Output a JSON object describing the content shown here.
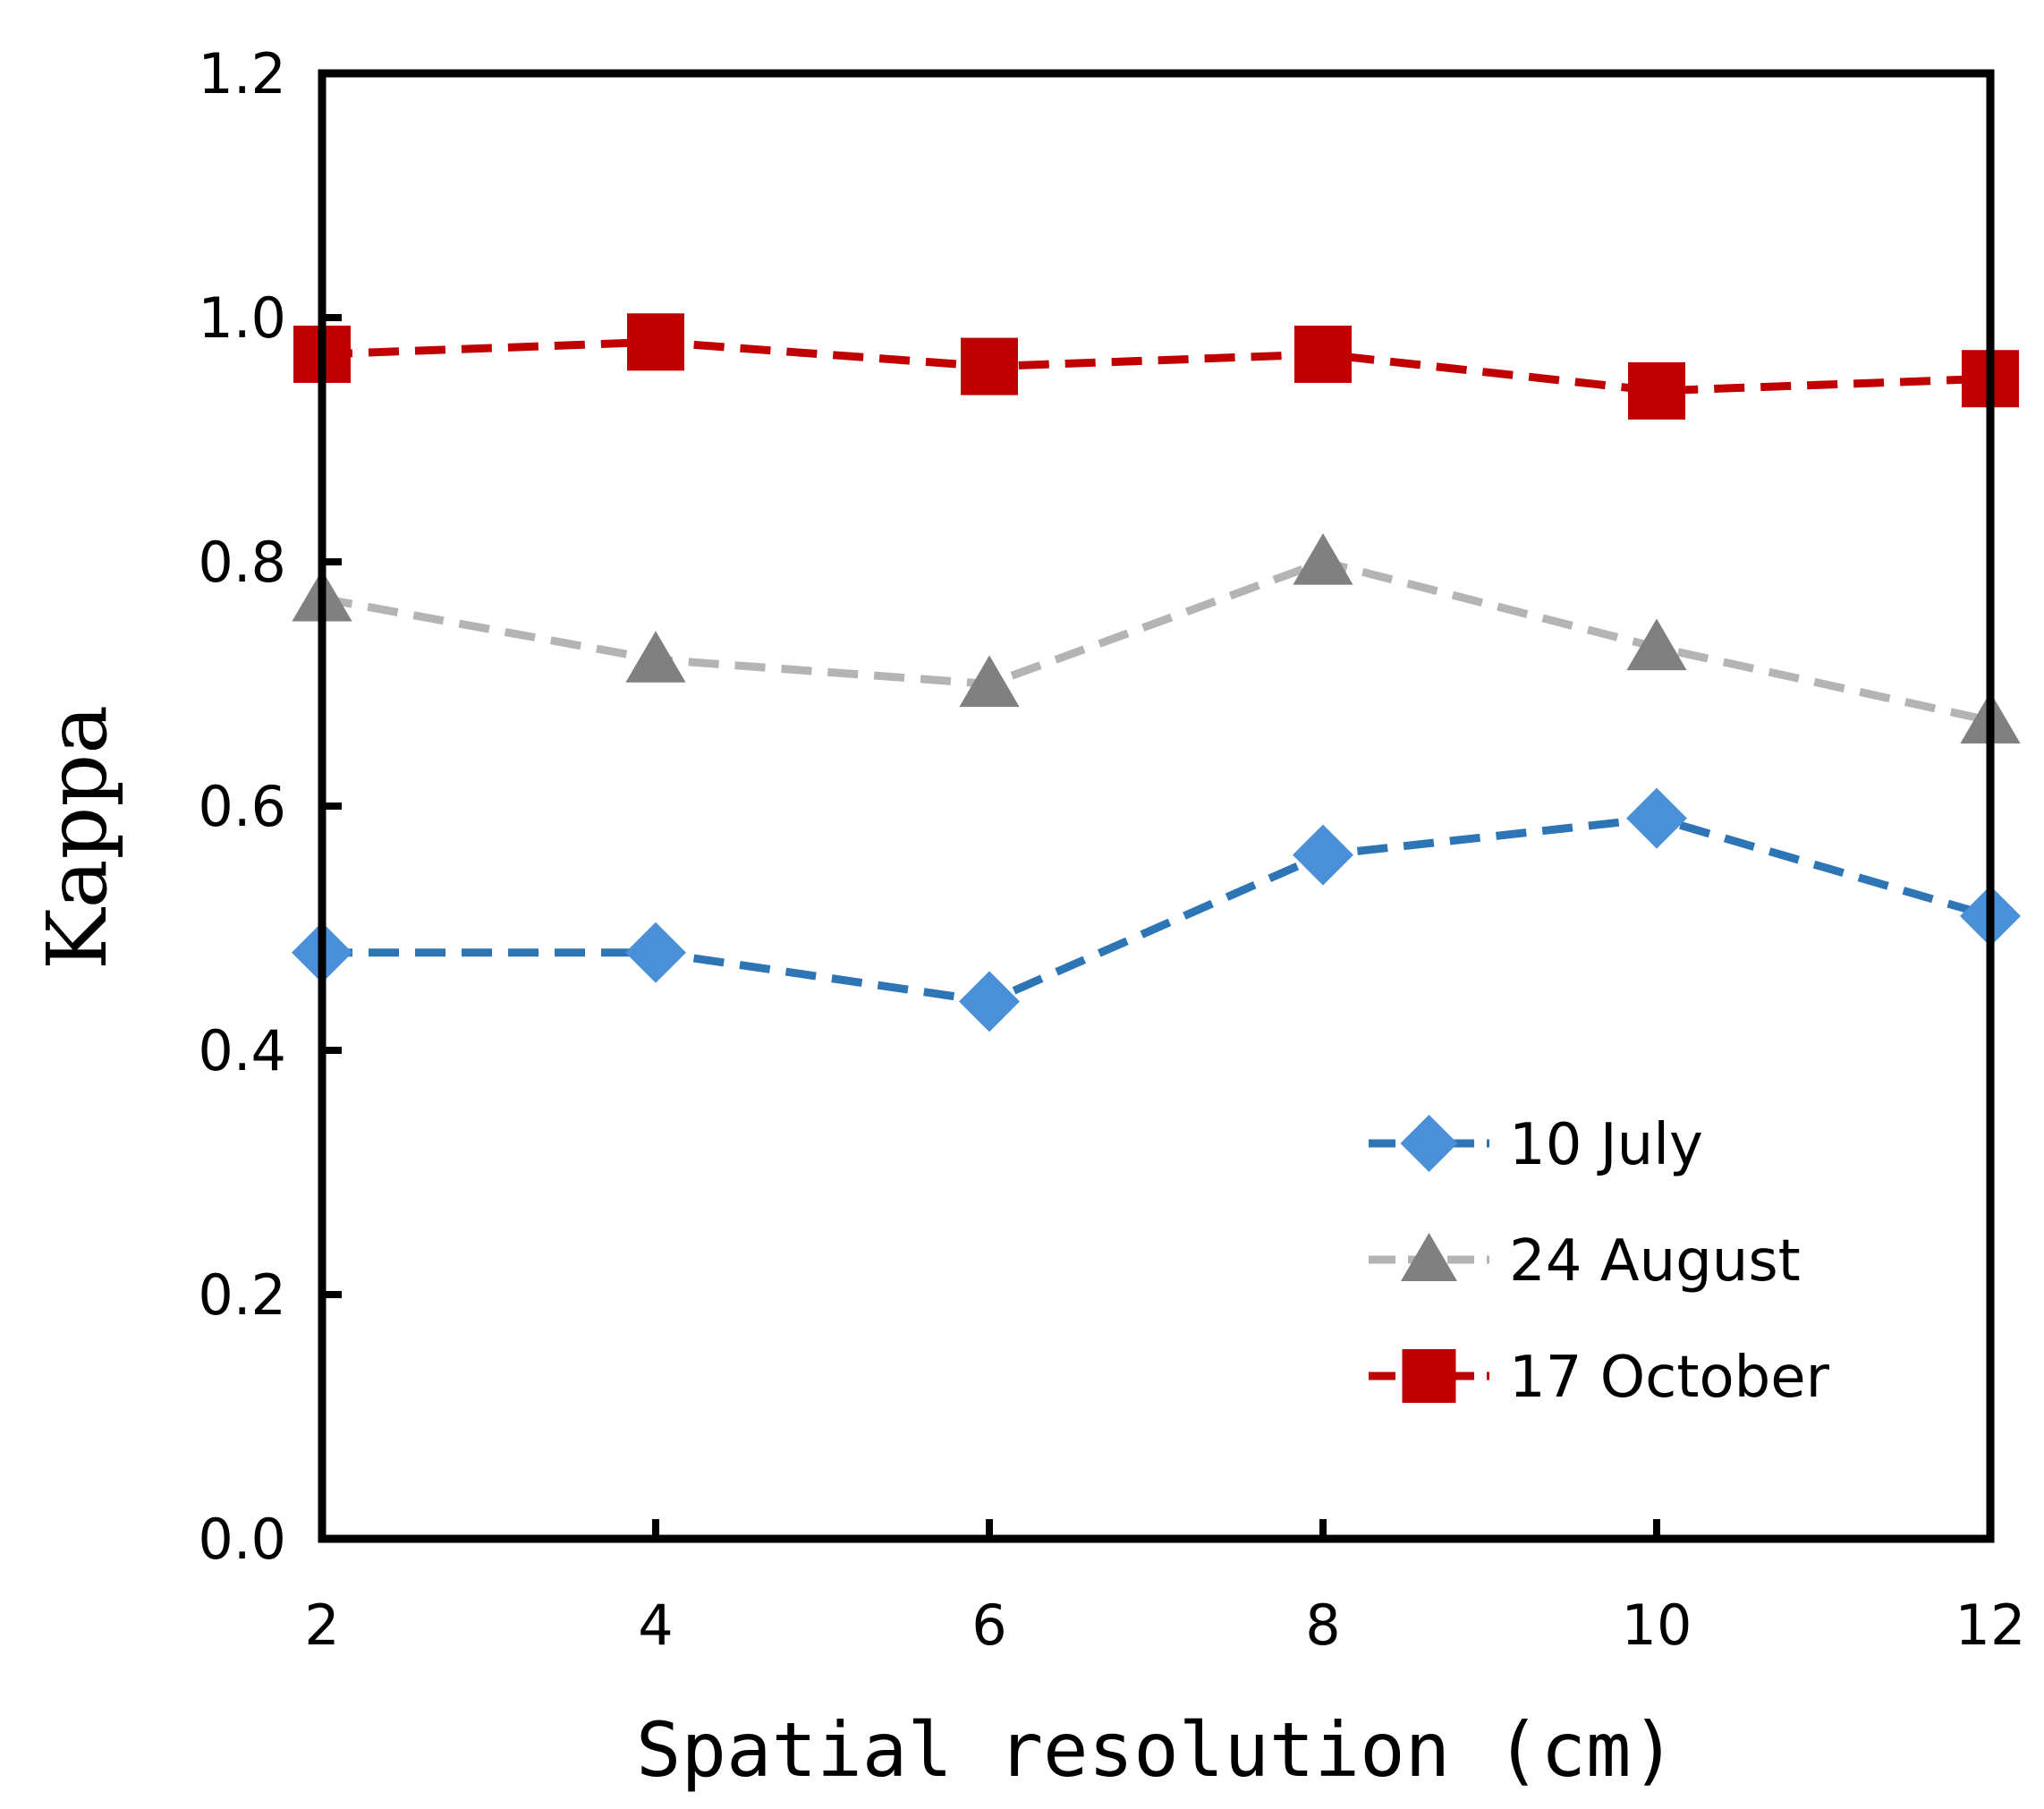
{
  "chart_data": {
    "type": "line",
    "title": "",
    "xlabel": "Spatial resolution (cm)",
    "ylabel": "Kappa",
    "x": [
      2,
      4,
      6,
      8,
      10,
      12
    ],
    "x_tick_labels": [
      "2",
      "4",
      "6",
      "8",
      "10",
      "12"
    ],
    "y_tick_labels": [
      "0.0",
      "0.2",
      "0.4",
      "0.6",
      "0.8",
      "1.0",
      "1.2"
    ],
    "xlim": [
      2,
      12
    ],
    "ylim": [
      0,
      1.2
    ],
    "grid": false,
    "legend_position": "bottom-right",
    "series": [
      {
        "name": "10 July",
        "marker": "diamond",
        "color": "#4a90d9",
        "line_color": "#2e75b6",
        "values": [
          0.48,
          0.48,
          0.44,
          0.56,
          0.59,
          0.51
        ]
      },
      {
        "name": "24 August",
        "marker": "triangle",
        "color": "#808080",
        "line_color": "#b4b4b4",
        "values": [
          0.77,
          0.72,
          0.7,
          0.8,
          0.73,
          0.67
        ]
      },
      {
        "name": "17 October",
        "marker": "square",
        "color": "#c00000",
        "line_color": "#c00000",
        "values": [
          0.97,
          0.98,
          0.96,
          0.97,
          0.94,
          0.95
        ]
      }
    ]
  }
}
